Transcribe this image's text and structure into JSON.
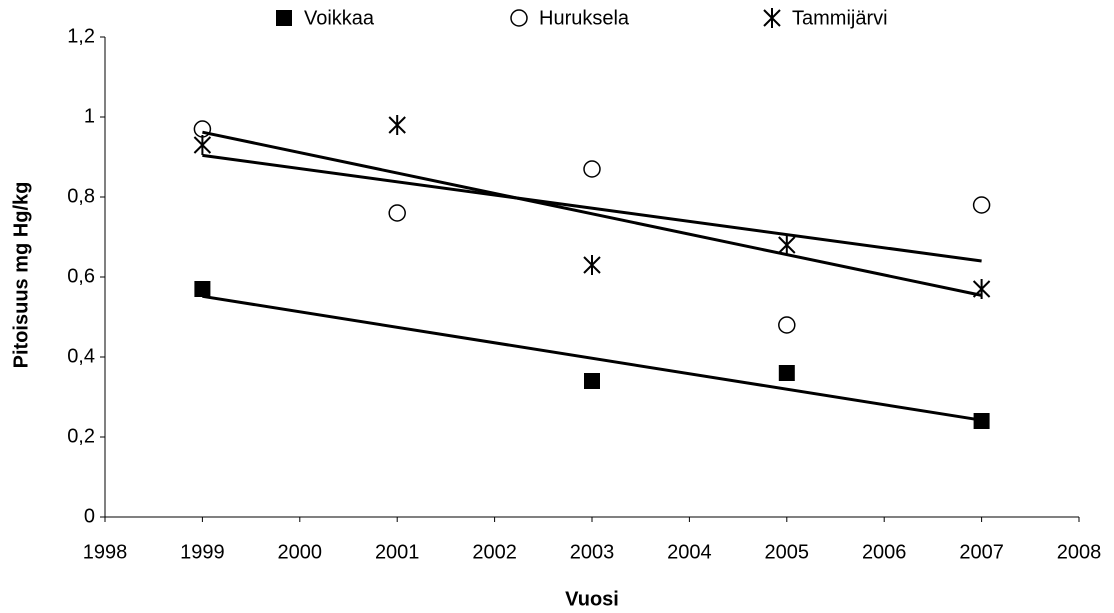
{
  "chart_data": {
    "type": "scatter",
    "x_label": "Vuosi",
    "y_label": "Pitoisuus mg Hg/kg",
    "x": [
      1999,
      2001,
      2003,
      2005,
      2007
    ],
    "series": [
      {
        "name": "Voikkaa",
        "color": "#000000",
        "marker": "square",
        "values": [
          0.57,
          null,
          0.34,
          0.36,
          0.24
        ]
      },
      {
        "name": "Huruksela",
        "color": "#000000",
        "marker": "circle",
        "values": [
          0.97,
          0.76,
          0.87,
          0.48,
          0.78
        ]
      },
      {
        "name": "Tammijärvi",
        "color": "#000000",
        "marker": "asterisk",
        "values": [
          0.93,
          0.98,
          0.63,
          0.68,
          0.57
        ]
      }
    ],
    "xlim": [
      1998,
      2008
    ],
    "xticks": [
      1998,
      1999,
      2000,
      2001,
      2002,
      2003,
      2004,
      2005,
      2006,
      2007,
      2008
    ],
    "ylim": [
      0,
      1.2
    ],
    "yticks": [
      0,
      {
        "value": 0.2,
        "label": "0,2"
      },
      {
        "value": 0.4,
        "label": "0,4"
      },
      {
        "value": 0.6,
        "label": "0,6"
      },
      {
        "value": 0.8,
        "label": "0,8"
      },
      1,
      {
        "value": 1.2,
        "label": "1,2"
      }
    ],
    "trendline": true,
    "grid": false,
    "legend": "top"
  }
}
